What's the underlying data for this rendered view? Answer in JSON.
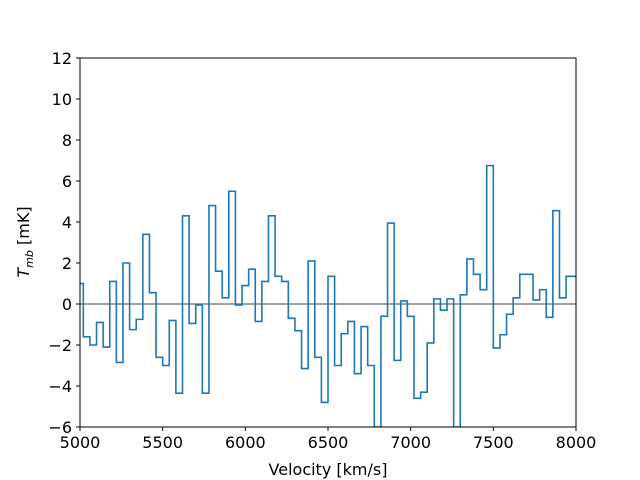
{
  "chart_data": {
    "type": "line",
    "drawstyle": "steps-mid",
    "xlabel": "Velocity [km/s]",
    "ylabel_main": "T",
    "ylabel_sub": "mb",
    "ylabel_unit": " [mK]",
    "xlim": [
      5000,
      8000
    ],
    "ylim": [
      -6,
      12
    ],
    "xticks": [
      5000,
      5500,
      6000,
      6500,
      7000,
      7500,
      8000
    ],
    "yticks": [
      -6,
      -4,
      -2,
      0,
      2,
      4,
      6,
      8,
      10,
      12
    ],
    "grid": false,
    "legend": "none",
    "baseline": 0,
    "colors": {
      "series": "#1f77b4",
      "baseline": "#808080",
      "axes": "#000000"
    },
    "series": [
      {
        "x": [
          5000,
          5040,
          5080,
          5120,
          5160,
          5200,
          5240,
          5280,
          5320,
          5360,
          5400,
          5440,
          5480,
          5520,
          5560,
          5600,
          5640,
          5680,
          5720,
          5760,
          5800,
          5840,
          5880,
          5920,
          5960,
          6000,
          6040,
          6080,
          6120,
          6160,
          6200,
          6240,
          6280,
          6320,
          6360,
          6400,
          6440,
          6480,
          6520,
          6560,
          6600,
          6640,
          6680,
          6720,
          6760,
          6800,
          6840,
          6880,
          6920,
          6960,
          7000,
          7040,
          7080,
          7120,
          7160,
          7200,
          7240,
          7280,
          7320,
          7360,
          7400,
          7440,
          7480,
          7520,
          7560,
          7600,
          7640,
          7680,
          7720,
          7760,
          7800,
          7840,
          7880,
          7920,
          7960,
          8000
        ],
        "y": [
          1.0,
          -1.6,
          -2.0,
          -0.9,
          -2.1,
          1.1,
          -2.85,
          2.0,
          -1.25,
          -0.75,
          3.4,
          0.55,
          -2.6,
          -3.0,
          -0.8,
          -4.35,
          4.3,
          -0.95,
          -0.05,
          -4.35,
          4.8,
          1.6,
          0.3,
          5.5,
          -0.05,
          0.9,
          1.7,
          -0.85,
          1.1,
          4.3,
          1.35,
          1.1,
          -0.7,
          -1.3,
          -3.15,
          2.1,
          -2.6,
          -4.8,
          1.35,
          -3.0,
          -1.45,
          -0.85,
          -3.4,
          -1.1,
          -3.0,
          -6.0,
          -0.6,
          3.95,
          -2.75,
          0.15,
          -0.6,
          -4.6,
          -4.3,
          -1.9,
          0.25,
          -0.3,
          0.25,
          -6.0,
          0.45,
          2.2,
          1.45,
          0.7,
          6.75,
          -2.15,
          -1.5,
          -0.5,
          0.3,
          1.45,
          1.45,
          0.2,
          0.7,
          -0.65,
          4.55,
          0.3,
          1.35,
          1.35
        ]
      }
    ]
  }
}
